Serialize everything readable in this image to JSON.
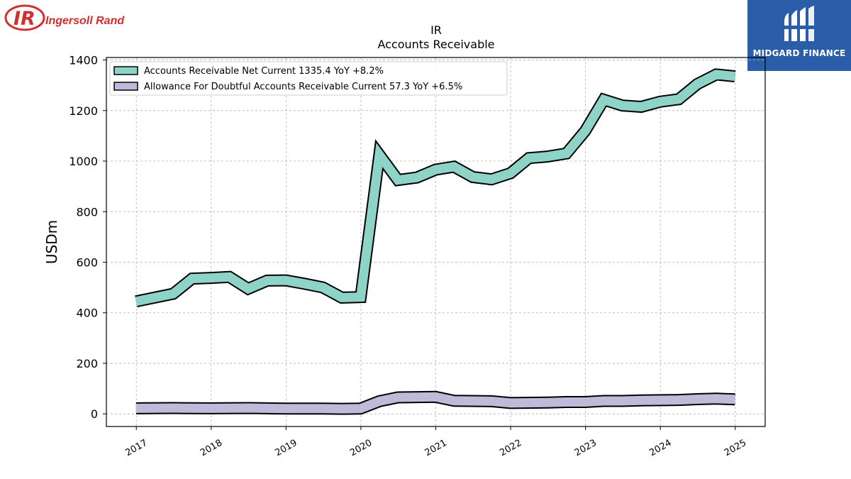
{
  "logos": {
    "left": {
      "name": "Ingersoll Rand",
      "mark": "IR",
      "color": "#d32f2f"
    },
    "right": {
      "name": "MIDGARD FINANCE",
      "color": "#2b5ea8"
    }
  },
  "chart_data": {
    "type": "line",
    "title": "IR",
    "subtitle": "Accounts Receivable",
    "ylabel": "USDm",
    "xlabel": "",
    "ylim": [
      -50,
      1410
    ],
    "xlim": [
      2016.6,
      2025.4
    ],
    "yticks": [
      0,
      200,
      400,
      600,
      800,
      1000,
      1200,
      1400
    ],
    "xticks": [
      "2017",
      "2018",
      "2019",
      "2020",
      "2021",
      "2022",
      "2023",
      "2024",
      "2025"
    ],
    "grid": true,
    "legend_position": "top-left",
    "series": [
      {
        "name": "Accounts Receivable Net Current",
        "legend_label": "Accounts Receivable Net Current  1335.4 YoY +8.2%",
        "color": "#8dd3c7",
        "x": [
          "2016-12-31",
          "2017-06-30",
          "2017-09-30",
          "2017-12-31",
          "2018-03-31",
          "2018-06-30",
          "2018-09-30",
          "2018-12-31",
          "2019-03-31",
          "2019-06-30",
          "2019-09-30",
          "2019-12-31",
          "2020-03-31",
          "2020-06-30",
          "2020-09-30",
          "2020-12-31",
          "2021-03-31",
          "2021-06-30",
          "2021-09-30",
          "2021-12-31",
          "2022-03-31",
          "2022-06-30",
          "2022-09-30",
          "2022-12-31",
          "2023-03-31",
          "2023-06-30",
          "2023-09-30",
          "2023-12-31",
          "2024-03-31",
          "2024-06-30",
          "2024-09-30",
          "2024-12-31"
        ],
        "values": [
          445,
          475,
          535,
          538,
          542,
          495,
          527,
          528,
          515,
          500,
          460,
          462,
          1025,
          925,
          935,
          966,
          978,
          937,
          928,
          952,
          1012,
          1018,
          1030,
          1120,
          1243,
          1220,
          1215,
          1235,
          1245,
          1305,
          1343,
          1335.4
        ]
      },
      {
        "name": "Allowance For Doubtful Accounts Receivable Current",
        "legend_label": "Allowance For Doubtful Accounts Receivable Current  57.3 YoY +6.5%",
        "color": "#bebada",
        "x": [
          "2016-12-31",
          "2017-06-30",
          "2017-12-31",
          "2018-06-30",
          "2018-09-30",
          "2018-12-31",
          "2019-06-30",
          "2019-09-30",
          "2019-12-31",
          "2020-03-31",
          "2020-06-30",
          "2020-12-31",
          "2021-03-31",
          "2021-09-30",
          "2021-12-31",
          "2022-06-30",
          "2022-09-30",
          "2022-12-31",
          "2023-03-31",
          "2023-06-30",
          "2023-09-30",
          "2024-03-31",
          "2024-06-30",
          "2024-09-30",
          "2024-12-31"
        ],
        "values": [
          22,
          23,
          22,
          23,
          22,
          21,
          21,
          20,
          21,
          50,
          65,
          67,
          52,
          50,
          43,
          45,
          47,
          47,
          51,
          51,
          53,
          55,
          58,
          60,
          57.3
        ]
      }
    ]
  }
}
